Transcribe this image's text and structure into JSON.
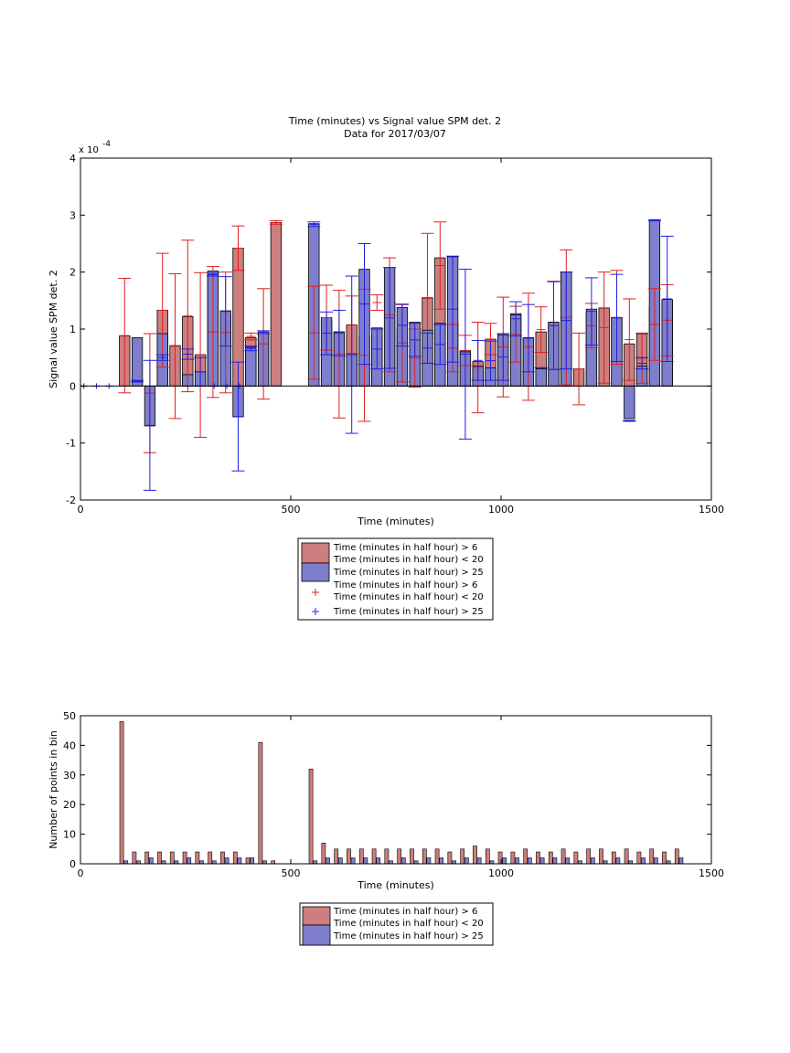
{
  "chart_data": [
    {
      "type": "bar",
      "title": "Time (minutes) vs Signal value SPM det. 2",
      "subtitle": "Data for 2017/03/07",
      "xlabel": "Time (minutes)",
      "ylabel": "Signal value SPM det. 2",
      "y_multiplier": "x 10",
      "y_multiplier_exponent": "-4",
      "xlim": [
        0,
        1500
      ],
      "ylim": [
        -2,
        4
      ],
      "xticks": [
        "0",
        "500",
        "1000",
        "1500"
      ],
      "yticks": [
        "-2",
        "-1",
        "0",
        "1",
        "2",
        "3",
        "4"
      ],
      "grid": false,
      "legend_position": "below plot",
      "legend": [
        {
          "line1": "Time (minutes in half hour) > 6",
          "line2": "Time (minutes in half hour) < 20",
          "marker": "bar",
          "color": "#cd7e7e"
        },
        {
          "line1": "Time (minutes in half hour) > 25",
          "line2": "",
          "marker": "bar",
          "color": "#7e7ecd"
        },
        {
          "line1": "Time (minutes in half hour) > 6",
          "line2": "Time (minutes in half hour) < 20",
          "marker": "+",
          "color": "#e02020"
        },
        {
          "line1": "Time (minutes in half hour) > 25",
          "line2": "",
          "marker": "+",
          "color": "#2020e0"
        }
      ],
      "series": [
        {
          "color": "#cd7e7e",
          "error_color": "#e02020",
          "x": [
            105,
            165,
            195,
            225,
            255,
            285,
            315,
            345,
            375,
            405,
            435,
            465,
            555,
            585,
            615,
            645,
            675,
            705,
            735,
            765,
            795,
            825,
            855,
            885,
            915,
            945,
            975,
            1005,
            1035,
            1065,
            1095,
            1125,
            1155,
            1185,
            1215,
            1245,
            1275,
            1305,
            1335,
            1365,
            1395,
            1425
          ],
          "values": [
            0.88,
            0.0,
            1.33,
            0.71,
            1.22,
            0.55,
            1.95,
            1.25,
            2.42,
            0.85,
            0.93,
            2.87,
            0.0,
            1.15,
            0.95,
            1.07,
            0.88,
            0.88,
            1.48,
            1.0,
            1.01,
            1.55,
            2.25,
            1.1,
            0.62,
            0.43,
            0.82,
            0.9,
            1.27,
            0.84,
            0.95,
            1.12,
            2.0,
            0.3,
            1.3,
            1.37,
            1.2,
            0.74,
            0.92,
            1.4,
            1.5,
            0.0
          ],
          "err_low": [
            -0.12,
            -1.17,
            0.33,
            -0.57,
            -0.1,
            -0.9,
            -0.2,
            -0.12,
            2.03,
            0.81,
            -0.23,
            2.84,
            0.12,
            0.63,
            -0.56,
            0.57,
            -0.62,
            1.33,
            0.25,
            0.07,
            -0.02,
            0.4,
            1.35,
            0.25,
            0.36,
            -0.47,
            0.55,
            -0.19,
            0.42,
            -0.25,
            0.59,
            0.29,
            0.02,
            -0.33,
            0.67,
            0.05,
            0.38,
            0.1,
            0.05,
            0.45,
            0.53,
            0.0
          ],
          "err_high": [
            1.89,
            0.92,
            2.33,
            1.97,
            2.56,
            1.99,
            2.1,
            2.0,
            2.81,
            0.93,
            1.71,
            2.9,
            1.75,
            1.77,
            1.68,
            1.58,
            1.7,
            1.6,
            2.25,
            1.44,
            1.0,
            2.68,
            2.88,
            1.08,
            0.89,
            1.12,
            1.1,
            1.56,
            1.4,
            1.63,
            1.39,
            1.84,
            2.39,
            0.93,
            1.45,
            2.0,
            2.03,
            1.53,
            0.93,
            1.71,
            1.78,
            0.0
          ]
        },
        {
          "color": "#7e7ecd",
          "error_color": "#2020e0",
          "x": [
            135,
            165,
            195,
            225,
            255,
            285,
            315,
            345,
            375,
            405,
            435,
            465,
            555,
            585,
            615,
            645,
            675,
            705,
            735,
            765,
            795,
            825,
            855,
            885,
            915,
            945,
            975,
            1005,
            1035,
            1065,
            1095,
            1125,
            1155,
            1185,
            1215,
            1245,
            1275,
            1305,
            1335,
            1365,
            1395,
            1425
          ],
          "values": [
            0.85,
            -0.7,
            0.92,
            0.0,
            0.2,
            0.25,
            2.02,
            1.32,
            -0.54,
            0.68,
            0.95,
            0.0,
            2.85,
            1.2,
            0.95,
            0.57,
            2.05,
            1.02,
            2.08,
            1.38,
            1.12,
            0.98,
            1.1,
            2.27,
            0.6,
            0.35,
            0.32,
            0.9,
            1.25,
            0.85,
            0.3,
            1.12,
            2.0,
            0.0,
            1.35,
            0.0,
            1.2,
            -0.57,
            0.35,
            2.9,
            1.52,
            0.0
          ],
          "err_low": [
            0.07,
            -1.83,
            0.55,
            0.0,
            0.47,
            0.0,
            1.93,
            0.7,
            -1.49,
            0.62,
            0.92,
            0.0,
            2.8,
            0.55,
            0.53,
            -0.83,
            0.38,
            0.3,
            0.31,
            0.7,
            0.52,
            0.4,
            0.38,
            0.42,
            -0.93,
            0.1,
            0.1,
            0.1,
            0.88,
            0.25,
            0.32,
            0.29,
            0.3,
            0.0,
            0.72,
            0.0,
            0.43,
            -0.62,
            0.3,
            2.9,
            0.43,
            0.0
          ],
          "err_high": [
            0.1,
            0.45,
            0.45,
            0.0,
            0.65,
            0.5,
            1.98,
            1.92,
            0.42,
            0.7,
            0.97,
            0.0,
            2.88,
            1.3,
            1.33,
            1.93,
            2.5,
            1.0,
            2.08,
            1.43,
            1.1,
            0.93,
            1.08,
            2.28,
            2.05,
            0.8,
            0.79,
            0.92,
            1.48,
            1.43,
            0.32,
            1.83,
            2.0,
            0.0,
            1.9,
            0.0,
            1.96,
            -0.6,
            0.5,
            2.92,
            2.63,
            0.0
          ]
        }
      ],
      "zero_markers_x": [
        8,
        38,
        68,
        318,
        348,
        378
      ]
    },
    {
      "type": "bar",
      "xlabel": "Time (minutes)",
      "ylabel": "Number of points in bin",
      "xlim": [
        0,
        1500
      ],
      "ylim": [
        0,
        50
      ],
      "xticks": [
        "0",
        "500",
        "1000",
        "1500"
      ],
      "yticks": [
        "0",
        "10",
        "20",
        "30",
        "40",
        "50"
      ],
      "grid": false,
      "legend_position": "below plot",
      "legend": [
        {
          "line1": "Time (minutes in half hour) > 6",
          "line2": "Time (minutes in half hour) < 20",
          "color": "#cd7e7e"
        },
        {
          "line1": "Time (minutes in half hour) > 25",
          "line2": "",
          "color": "#7e7ecd"
        }
      ],
      "series": [
        {
          "color": "#cd7e7e",
          "x": [
            98,
            128,
            158,
            188,
            218,
            248,
            278,
            308,
            338,
            368,
            398,
            428,
            458,
            548,
            578,
            608,
            638,
            668,
            698,
            728,
            758,
            788,
            818,
            848,
            878,
            908,
            938,
            968,
            998,
            1028,
            1058,
            1088,
            1118,
            1148,
            1178,
            1208,
            1238,
            1268,
            1298,
            1328,
            1358,
            1388,
            1418
          ],
          "values": [
            48,
            4,
            4,
            4,
            4,
            4,
            4,
            4,
            4,
            4,
            2,
            41,
            1,
            32,
            7,
            5,
            5,
            5,
            5,
            5,
            5,
            5,
            5,
            5,
            4,
            5,
            6,
            5,
            4,
            4,
            5,
            4,
            4,
            5,
            4,
            5,
            5,
            4,
            5,
            4,
            5,
            4,
            5
          ]
        },
        {
          "color": "#7e7ecd",
          "x": [
            108,
            138,
            168,
            198,
            228,
            258,
            288,
            318,
            348,
            378,
            408,
            438,
            558,
            588,
            618,
            648,
            678,
            708,
            738,
            768,
            798,
            828,
            858,
            888,
            918,
            948,
            978,
            1008,
            1038,
            1068,
            1098,
            1128,
            1158,
            1188,
            1218,
            1248,
            1278,
            1308,
            1338,
            1368,
            1398,
            1428
          ],
          "values": [
            1,
            1,
            2,
            1,
            1,
            2,
            1,
            1,
            2,
            2,
            2,
            1,
            1,
            2,
            2,
            2,
            2,
            2,
            1,
            2,
            1,
            2,
            2,
            1,
            2,
            2,
            1,
            2,
            2,
            2,
            2,
            2,
            2,
            1,
            2,
            1,
            2,
            1,
            2,
            2,
            1,
            2
          ]
        }
      ]
    }
  ]
}
